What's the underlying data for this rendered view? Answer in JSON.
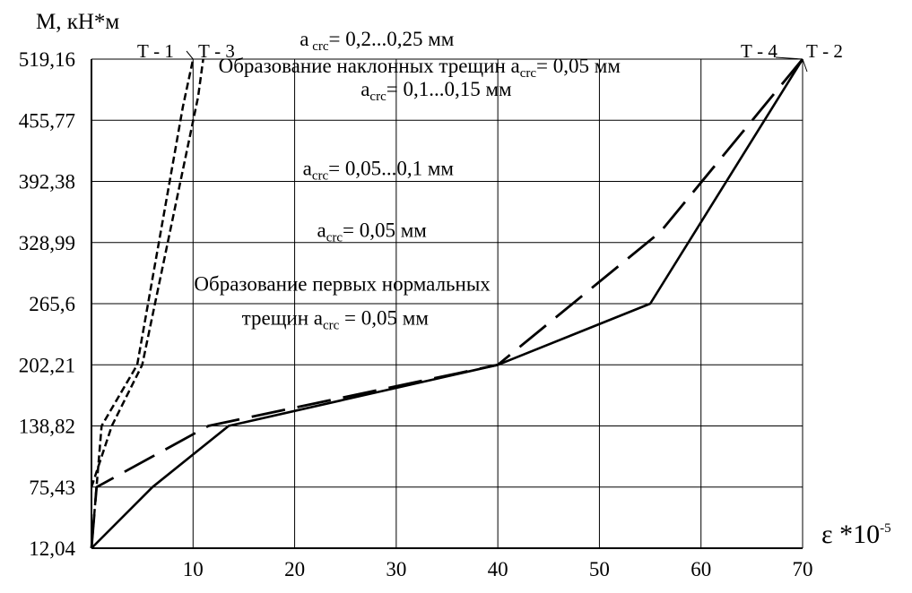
{
  "chart_data": {
    "type": "line",
    "ylabel": "М, кН*м",
    "xlabel": {
      "base": "ε *10",
      "sup": "-5"
    },
    "xlim": [
      0,
      70
    ],
    "ylim": [
      12.04,
      519.16
    ],
    "x_ticks": [
      "10",
      "20",
      "30",
      "40",
      "50",
      "60",
      "70"
    ],
    "y_ticks": [
      "12,04",
      "75,43",
      "138,82",
      "202,21",
      "265,6",
      "328,99",
      "392,38",
      "455,77",
      "519,16"
    ],
    "series": [
      {
        "name": "Т - 1",
        "style": "dashed",
        "points": [
          [
            0,
            12.04
          ],
          [
            1,
            138.82
          ],
          [
            4.5,
            202.21
          ],
          [
            9,
            470
          ],
          [
            10,
            519.16
          ]
        ]
      },
      {
        "name": "Т - 3",
        "style": "dashed",
        "points": [
          [
            0,
            75.43
          ],
          [
            2,
            138.82
          ],
          [
            5,
            202.21
          ],
          [
            10.5,
            480
          ],
          [
            11,
            519.16
          ]
        ]
      },
      {
        "name": "Т - 4",
        "style": "longdash",
        "points": [
          [
            0,
            12.04
          ],
          [
            0.5,
            75.43
          ],
          [
            11.5,
            138.82
          ],
          [
            40,
            202.21
          ],
          [
            56,
            340
          ],
          [
            70,
            519.16
          ]
        ]
      },
      {
        "name": "Т - 2",
        "style": "solid",
        "points": [
          [
            0,
            12.04
          ],
          [
            6,
            75.43
          ],
          [
            13.5,
            138.82
          ],
          [
            40,
            202.21
          ],
          [
            55,
            265.6
          ],
          [
            70,
            519.16
          ]
        ]
      }
    ],
    "annotations": [
      {
        "id": "a1",
        "pre": "a",
        "sub": " crc",
        "post": "= 0,2...0,25 мм",
        "x": 20.5,
        "y": 533
      },
      {
        "id": "a2",
        "pre": "Образование наклонных трещин a",
        "sub": "crc",
        "post": "= 0,05 мм",
        "x": 12.5,
        "y": 505
      },
      {
        "id": "a3",
        "pre": "a",
        "sub": "crc",
        "post": "= 0,1...0,15 мм",
        "x": 26.5,
        "y": 481
      },
      {
        "id": "a4",
        "pre": "a",
        "sub": "crc",
        "post": "= 0,05...0,1 мм",
        "x": 20.8,
        "y": 399
      },
      {
        "id": "a5",
        "pre": "a",
        "sub": "crc",
        "post": "= 0,05 мм",
        "x": 22.2,
        "y": 335
      },
      {
        "id": "a6",
        "pre": "Образование первых нормальных",
        "sub": "",
        "post": "",
        "x": 10.1,
        "y": 279
      },
      {
        "id": "a7",
        "pre": "трещин a",
        "sub": "crc",
        "post": " = 0,05 мм",
        "x": 14.8,
        "y": 244
      }
    ]
  }
}
